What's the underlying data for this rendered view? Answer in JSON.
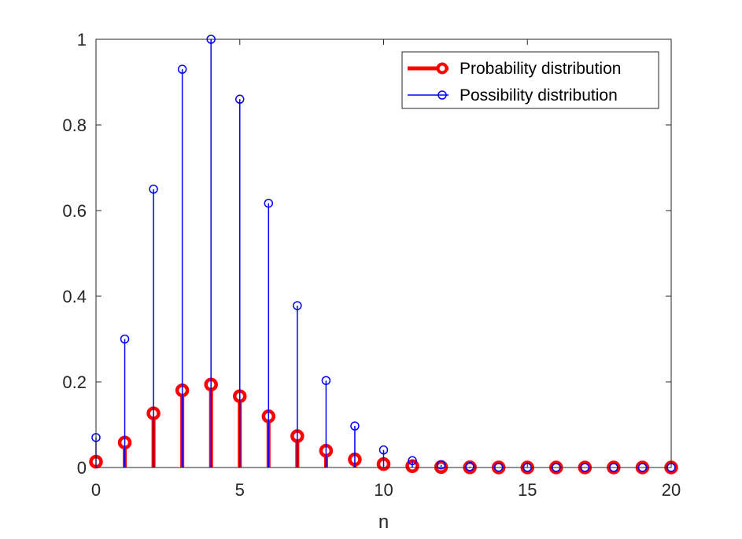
{
  "chart_data": {
    "type": "stem",
    "title": "",
    "xlabel": "n",
    "ylabel": "",
    "xlim": [
      0,
      20
    ],
    "ylim": [
      0,
      1
    ],
    "xticks": [
      0,
      5,
      10,
      15,
      20
    ],
    "yticks": [
      0,
      0.2,
      0.4,
      0.6,
      0.8,
      1
    ],
    "xtick_labels": [
      "0",
      "5",
      "10",
      "15",
      "20"
    ],
    "ytick_labels": [
      "0",
      "0.2",
      "0.4",
      "0.6",
      "0.8",
      "1"
    ],
    "grid": false,
    "box": true,
    "legend_position": "top-right",
    "x": [
      0,
      1,
      2,
      3,
      4,
      5,
      6,
      7,
      8,
      9,
      10,
      11,
      12,
      13,
      14,
      15,
      16,
      17,
      18,
      19,
      20
    ],
    "series": [
      {
        "name": "Probability distribution",
        "color": "#ff0000",
        "marker": "circle-filled",
        "line_weight": "thick",
        "values": [
          0.0135,
          0.0582,
          0.1264,
          0.1801,
          0.1937,
          0.1665,
          0.1194,
          0.0733,
          0.0392,
          0.0187,
          0.008,
          0.0031,
          0.0011,
          0.0004,
          0.0001,
          0.0,
          0.0,
          0.0,
          0.0,
          0.0,
          0.0
        ]
      },
      {
        "name": "Possibility distribution",
        "color": "#0000ff",
        "marker": "circle-open",
        "line_weight": "thin",
        "values": [
          0.07,
          0.3,
          0.65,
          0.93,
          1.0,
          0.86,
          0.617,
          0.378,
          0.203,
          0.097,
          0.041,
          0.016,
          0.006,
          0.002,
          0.0007,
          0.0002,
          0.0,
          0.0,
          0.0,
          0.0,
          0.0
        ]
      }
    ]
  }
}
